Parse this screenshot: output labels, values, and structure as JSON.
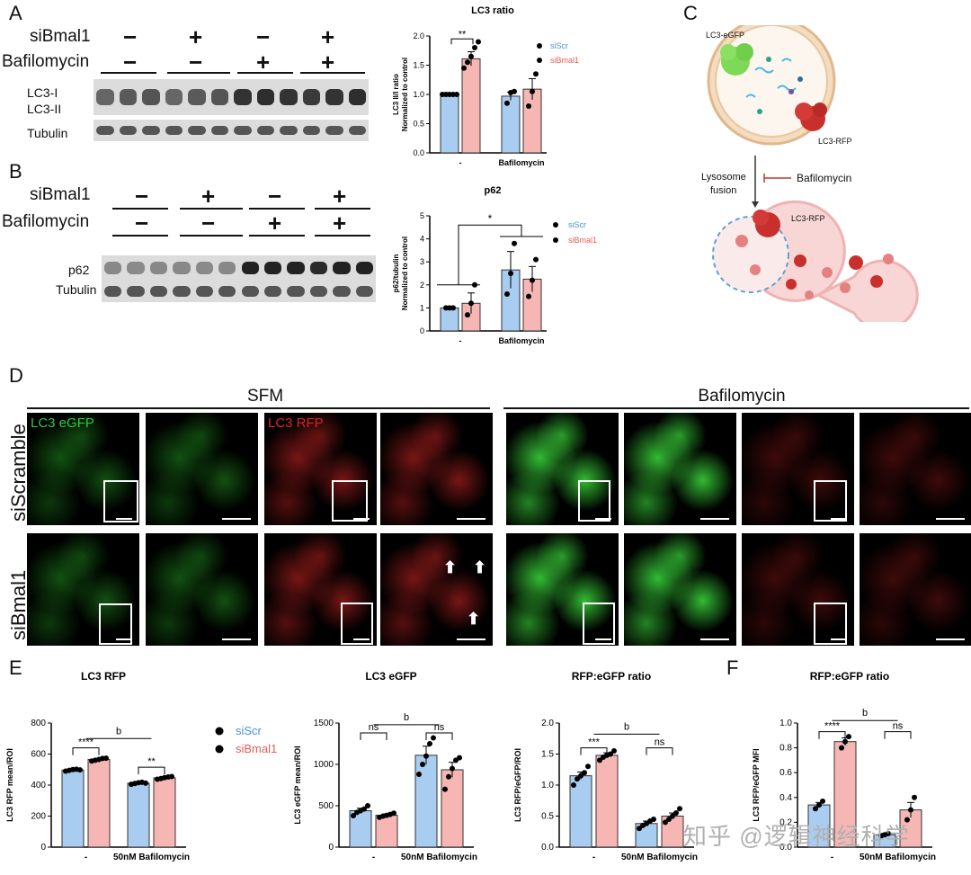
{
  "panels": {
    "A": "A",
    "B": "B",
    "C": "C",
    "D": "D",
    "E": "E",
    "F": "F"
  },
  "western": {
    "siBmal1_label": "siBmal1",
    "bafilomycin_label": "Bafilomycin",
    "signs_siBmal1": [
      "−",
      "+",
      "−",
      "+"
    ],
    "signs_bafilomycin": [
      "−",
      "−",
      "+",
      "+"
    ],
    "a_bands": {
      "top1": "LC3-I",
      "top2": "LC3-II",
      "bottom": "Tubulin"
    },
    "b_bands": {
      "top": "p62",
      "bottom": "Tubulin"
    }
  },
  "diagram_c": {
    "lc3_egfp": "LC3-eGFP",
    "lc3_rfp_top": "LC3-RFP",
    "lysosome": "Lysosome",
    "fusion": "fusion",
    "bafilomycin": "Bafilomycin",
    "lc3_rfp_bottom": "LC3-RFP"
  },
  "microscopy": {
    "sfm": "SFM",
    "bafilomycin": "Bafilomycin",
    "lc3_egfp": "LC3 eGFP",
    "lc3_rfp": "LC3 RFP",
    "row1": "siScramble",
    "row2": "siBmal1"
  },
  "colors": {
    "siScr": "#a9cdf0",
    "siBmal1": "#f6b6b4",
    "siScr_text": "#4a90d9",
    "siBmal1_text": "#e0605a",
    "green": "#2ecc40",
    "red": "#d9262a"
  },
  "legend": {
    "siScr": "siScr",
    "siBmal1": "siBmal1"
  },
  "watermark": "知乎 @逻辑神经科学",
  "chart_data": [
    {
      "id": "A",
      "type": "bar",
      "title": "LC3 ratio",
      "ylabel": "LC3 II/I ratio\nNormalized to control",
      "ylabel_line1": "LC3 II/I ratio",
      "ylabel_line2": "Normalized to control",
      "ylim": [
        0,
        2.0
      ],
      "yticks": [
        "0.0",
        "0.5",
        "1.0",
        "1.5",
        "2.0"
      ],
      "ytick_vals": [
        0,
        0.5,
        1.0,
        1.5,
        2.0
      ],
      "categories": [
        "-",
        "Bafilomycin"
      ],
      "series": [
        {
          "name": "siScr",
          "values": [
            1.0,
            0.97
          ],
          "err": [
            0.01,
            0.07
          ]
        },
        {
          "name": "siBmal1",
          "values": [
            1.61,
            1.09
          ],
          "err": [
            0.12,
            0.18
          ]
        }
      ],
      "points": [
        [
          [
            1.0,
            1.0,
            1.0,
            1.0,
            1.0
          ],
          [
            0.85,
            1.03,
            1.05
          ]
        ],
        [
          [
            1.45,
            1.55,
            1.65,
            1.8,
            1.9
          ],
          [
            0.8,
            1.05,
            1.35
          ]
        ]
      ],
      "annotation": "**",
      "legend": "top-right"
    },
    {
      "id": "B",
      "type": "bar",
      "title": "p62",
      "ylabel_line1": "p62/tubulin",
      "ylabel_line2": "Normalized to control",
      "ylim": [
        0,
        5
      ],
      "yticks": [
        "0",
        "1",
        "2",
        "3",
        "4",
        "5"
      ],
      "ytick_vals": [
        0,
        1,
        2,
        3,
        4,
        5
      ],
      "categories": [
        "-",
        "Bafilomycin"
      ],
      "series": [
        {
          "name": "siScr",
          "values": [
            1.0,
            2.65
          ],
          "err": [
            0.01,
            0.8
          ]
        },
        {
          "name": "siBmal1",
          "values": [
            1.2,
            2.25
          ],
          "err": [
            0.45,
            0.55
          ]
        }
      ],
      "points": [
        [
          [
            1.0,
            1.0,
            1.0
          ],
          [
            1.6,
            2.5,
            3.8
          ]
        ],
        [
          [
            0.7,
            1.2,
            2.0
          ],
          [
            1.5,
            2.2,
            3.1
          ]
        ]
      ],
      "annotation": "*",
      "legend": "top-right"
    },
    {
      "id": "E1",
      "type": "bar",
      "title": "LC3 RFP",
      "ylabel": "LC3 RFP mean/ROI",
      "ylim": [
        0,
        800
      ],
      "yticks": [
        "0",
        "200",
        "400",
        "600",
        "800"
      ],
      "ytick_vals": [
        0,
        200,
        400,
        600,
        800
      ],
      "categories": [
        "-",
        "50nM Bafilomycin"
      ],
      "series": [
        {
          "name": "siScr",
          "values": [
            497,
            412
          ],
          "err": [
            6,
            7
          ]
        },
        {
          "name": "siBmal1",
          "values": [
            565,
            447
          ],
          "err": [
            7,
            8
          ]
        }
      ],
      "points": [
        [
          [
            490,
            495,
            500,
            502,
            498
          ],
          [
            405,
            410,
            415,
            418,
            412
          ]
        ],
        [
          [
            555,
            560,
            565,
            572,
            573
          ],
          [
            438,
            442,
            448,
            452,
            455
          ]
        ]
      ],
      "annotations": [
        "****",
        "**",
        "b"
      ]
    },
    {
      "id": "E2",
      "type": "bar",
      "title": "LC3 eGFP",
      "ylabel": "LC3 eGFP mean/ROI",
      "ylim": [
        0,
        1500
      ],
      "yticks": [
        "0",
        "500",
        "1000",
        "1500"
      ],
      "ytick_vals": [
        0,
        500,
        1000,
        1500
      ],
      "categories": [
        "-",
        "50nM Bafilomycin"
      ],
      "series": [
        {
          "name": "siScr",
          "values": [
            440,
            1110
          ],
          "err": [
            30,
            110
          ]
        },
        {
          "name": "siBmal1",
          "values": [
            385,
            935
          ],
          "err": [
            15,
            90
          ]
        }
      ],
      "points": [
        [
          [
            380,
            420,
            440,
            460,
            500
          ],
          [
            880,
            1000,
            1100,
            1250,
            1320
          ]
        ],
        [
          [
            360,
            375,
            385,
            395,
            410
          ],
          [
            700,
            850,
            950,
            1050,
            1080
          ]
        ]
      ],
      "annotations": [
        "ns",
        "ns",
        "b"
      ]
    },
    {
      "id": "E3",
      "type": "bar",
      "title": "RFP:eGFP ratio",
      "ylabel": "LC3 RFP/eGFP/ROI",
      "ylim": [
        0,
        2.0
      ],
      "yticks": [
        "0.0",
        "0.5",
        "1.0",
        "1.5",
        "2.0"
      ],
      "ytick_vals": [
        0,
        0.5,
        1.0,
        1.5,
        2.0
      ],
      "categories": [
        "-",
        "50nM Bafilomycin"
      ],
      "series": [
        {
          "name": "siScr",
          "values": [
            1.15,
            0.38
          ],
          "err": [
            0.06,
            0.04
          ]
        },
        {
          "name": "siBmal1",
          "values": [
            1.48,
            0.5
          ],
          "err": [
            0.04,
            0.05
          ]
        }
      ],
      "points": [
        [
          [
            1.0,
            1.1,
            1.15,
            1.2,
            1.3
          ],
          [
            0.3,
            0.35,
            0.38,
            0.42,
            0.45
          ]
        ],
        [
          [
            1.4,
            1.45,
            1.48,
            1.5,
            1.55
          ],
          [
            0.4,
            0.45,
            0.5,
            0.55,
            0.62
          ]
        ]
      ],
      "annotations": [
        "***",
        "ns",
        "b"
      ]
    },
    {
      "id": "F",
      "type": "bar",
      "title": "RFP:eGFP ratio",
      "ylabel": "LC3 RFP/eGFP MFI",
      "ylim": [
        0,
        1.0
      ],
      "yticks": [
        "0.0",
        "0.2",
        "0.4",
        "0.6",
        "0.8",
        "1.0"
      ],
      "ytick_vals": [
        0,
        0.2,
        0.4,
        0.6,
        0.8,
        1.0
      ],
      "categories": [
        "-",
        "50nM Bafilomycin"
      ],
      "series": [
        {
          "name": "siScr",
          "values": [
            0.34,
            0.1
          ],
          "err": [
            0.02,
            0.01
          ]
        },
        {
          "name": "siBmal1",
          "values": [
            0.85,
            0.3
          ],
          "err": [
            0.03,
            0.06
          ]
        }
      ],
      "points": [
        [
          [
            0.31,
            0.34,
            0.37
          ],
          [
            0.09,
            0.1,
            0.11
          ]
        ],
        [
          [
            0.8,
            0.85,
            0.89
          ],
          [
            0.22,
            0.3,
            0.4
          ]
        ]
      ],
      "annotations": [
        "****",
        "ns",
        "b"
      ]
    }
  ]
}
